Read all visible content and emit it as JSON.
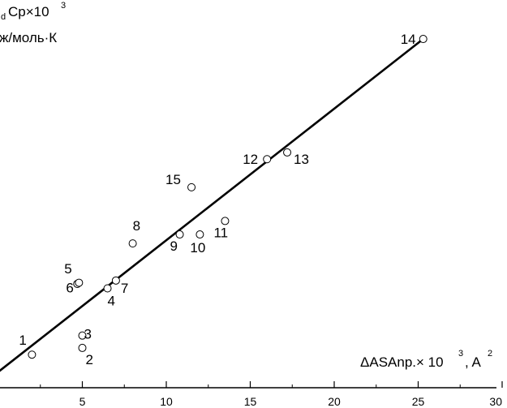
{
  "chart_data": {
    "type": "scatter",
    "title": "",
    "ylabel_line1_prefix": "d",
    "ylabel_line1_main": "Cp×10",
    "ylabel_line1_sup": "3",
    "ylabel_line2": "ж/моль·К",
    "xlabel_main": "ΔASAnp.× 10",
    "xlabel_sup": "3",
    "xlabel_tail": ", A",
    "xlabel_sup2": "2",
    "xlim": [
      0,
      30
    ],
    "xticks": [
      "5",
      "10",
      "15",
      "20",
      "25",
      "30"
    ],
    "grid": false,
    "points": [
      {
        "label": "1",
        "x": 2.0,
        "y": 0.75
      },
      {
        "label": "2",
        "x": 5.0,
        "y": 1.05
      },
      {
        "label": "3",
        "x": 5.0,
        "y": 1.6
      },
      {
        "label": "4",
        "x": 6.5,
        "y": 3.7
      },
      {
        "label": "5",
        "x": 4.7,
        "y": 3.9
      },
      {
        "label": "6",
        "x": 4.8,
        "y": 3.95
      },
      {
        "label": "7",
        "x": 7.0,
        "y": 4.05
      },
      {
        "label": "8",
        "x": 8.0,
        "y": 5.7
      },
      {
        "label": "9",
        "x": 10.8,
        "y": 6.1
      },
      {
        "label": "10",
        "x": 12.0,
        "y": 6.1
      },
      {
        "label": "11",
        "x": 13.5,
        "y": 6.7
      },
      {
        "label": "12",
        "x": 16.0,
        "y": 9.45
      },
      {
        "label": "13",
        "x": 17.2,
        "y": 9.75
      },
      {
        "label": "14",
        "x": 25.3,
        "y": 14.8
      },
      {
        "label": "15",
        "x": 11.5,
        "y": 8.2
      }
    ],
    "fit_line": {
      "x": [
        -1,
        25.3
      ],
      "y": [
        -0.6,
        14.8
      ]
    }
  }
}
